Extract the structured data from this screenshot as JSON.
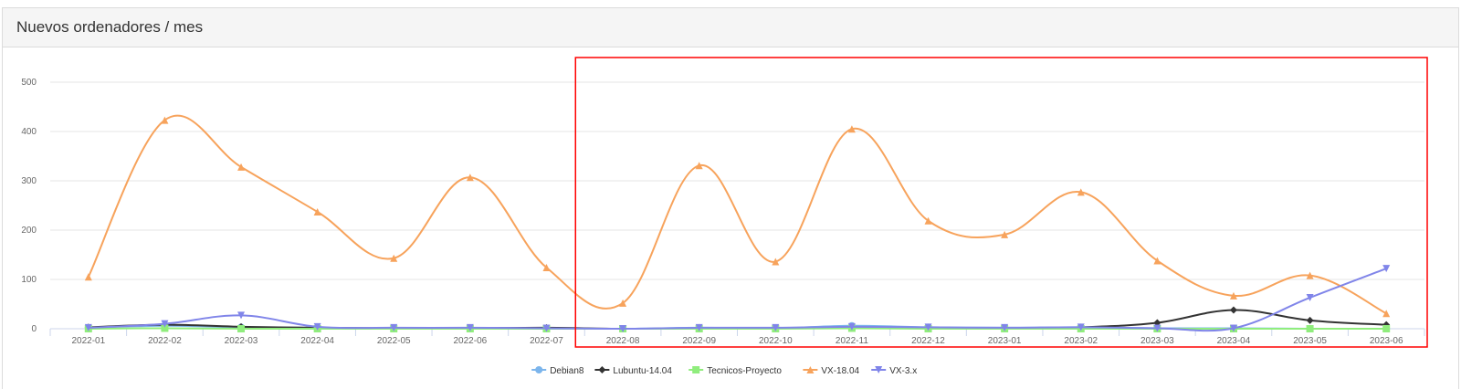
{
  "panel": {
    "title": "Nuevos ordenadores / mes"
  },
  "chart_data": {
    "type": "line",
    "title": "",
    "xlabel": "",
    "ylabel": "",
    "ylim": [
      0,
      500
    ],
    "yticks": [
      0,
      100,
      200,
      300,
      400,
      500
    ],
    "grid": true,
    "legend_position": "bottom-center",
    "categories": [
      "2022-01",
      "2022-02",
      "2022-03",
      "2022-04",
      "2022-05",
      "2022-06",
      "2022-07",
      "2022-08",
      "2022-09",
      "2022-10",
      "2022-11",
      "2022-12",
      "2023-01",
      "2023-02",
      "2023-03",
      "2023-04",
      "2023-05",
      "2023-06"
    ],
    "series": [
      {
        "name": "Debian8",
        "color": "#7cb5ec",
        "marker": "circle",
        "values": [
          2,
          6,
          3,
          2,
          1,
          1,
          1,
          0,
          2,
          1,
          6,
          3,
          2,
          3,
          1,
          1,
          0,
          0
        ]
      },
      {
        "name": "Lubuntu-14.04",
        "color": "#333333",
        "marker": "diamond",
        "values": [
          3,
          8,
          4,
          2,
          1,
          1,
          2,
          0,
          1,
          1,
          2,
          1,
          1,
          3,
          12,
          38,
          17,
          8
        ]
      },
      {
        "name": "Tecnicos-Proyecto",
        "color": "#90ed7d",
        "marker": "square",
        "values": [
          0,
          1,
          0,
          0,
          0,
          0,
          0,
          0,
          0,
          0,
          1,
          0,
          0,
          0,
          0,
          0,
          0,
          0
        ]
      },
      {
        "name": "VX-18.04",
        "color": "#f7a35c",
        "marker": "triangle",
        "values": [
          105,
          423,
          328,
          237,
          143,
          307,
          124,
          52,
          331,
          136,
          405,
          219,
          191,
          277,
          138,
          67,
          108,
          31
        ]
      },
      {
        "name": "VX-3.x",
        "color": "#8085e9",
        "marker": "triangle-down",
        "values": [
          2,
          10,
          27,
          4,
          2,
          2,
          1,
          0,
          2,
          2,
          4,
          3,
          2,
          3,
          1,
          1,
          63,
          122
        ]
      }
    ],
    "highlight_box": {
      "color": "#ff0000",
      "from_category": "2022-08",
      "to_category": "2023-06"
    }
  }
}
